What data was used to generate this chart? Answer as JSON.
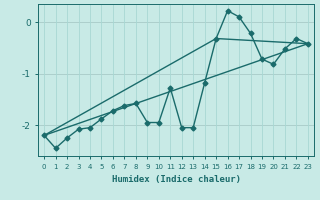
{
  "xlabel": "Humidex (Indice chaleur)",
  "ylabel": "",
  "bg_color": "#c8eae6",
  "grid_color": "#a8d8d4",
  "line_color": "#1a6b6b",
  "xlim": [
    -0.5,
    23.5
  ],
  "ylim": [
    -2.6,
    0.35
  ],
  "yticks": [
    0,
    -1,
    -2
  ],
  "xticks": [
    0,
    1,
    2,
    3,
    4,
    5,
    6,
    7,
    8,
    9,
    10,
    11,
    12,
    13,
    14,
    15,
    16,
    17,
    18,
    19,
    20,
    21,
    22,
    23
  ],
  "series1_x": [
    0,
    1,
    2,
    3,
    4,
    5,
    6,
    7,
    8,
    9,
    10,
    11,
    12,
    13,
    14,
    15,
    16,
    17,
    18,
    19,
    20,
    21,
    22,
    23
  ],
  "series1_y": [
    -2.2,
    -2.45,
    -2.25,
    -2.08,
    -2.05,
    -1.88,
    -1.72,
    -1.62,
    -1.58,
    -1.95,
    -1.95,
    -1.28,
    -2.05,
    -2.05,
    -1.18,
    -0.32,
    0.22,
    0.1,
    -0.22,
    -0.72,
    -0.82,
    -0.52,
    -0.32,
    -0.42
  ],
  "series2_x": [
    0,
    23
  ],
  "series2_y": [
    -2.2,
    -0.42
  ],
  "series3_x": [
    0,
    15,
    23
  ],
  "series3_y": [
    -2.2,
    -0.32,
    -0.42
  ],
  "marker": "D",
  "marker_size": 2.5,
  "line_width": 1.0
}
